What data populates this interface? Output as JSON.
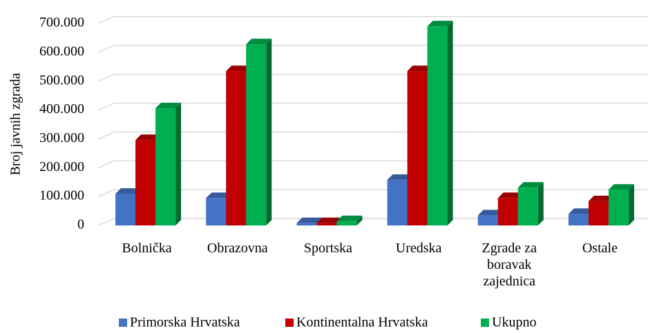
{
  "chart_data": {
    "type": "bar3d",
    "y_label": "Broj javnih zgrada",
    "categories": [
      "Bolnička",
      "Obrazovna",
      "Sportska",
      "Uredska",
      "Zgrade za boravak zajednica",
      "Ostale"
    ],
    "series": [
      {
        "name": "Primorska Hrvatska",
        "color": "#4472c4",
        "values": [
          110000,
          95000,
          8000,
          158000,
          35000,
          40000
        ]
      },
      {
        "name": "Kontinentalna Hrvatska",
        "color": "#c00000",
        "values": [
          296000,
          535000,
          8000,
          535000,
          95000,
          84000
        ]
      },
      {
        "name": "Ukupno",
        "color": "#00b050",
        "values": [
          406000,
          628000,
          15000,
          690000,
          131000,
          124000
        ]
      }
    ],
    "ylim": [
      0,
      700000
    ],
    "yticks": [
      0,
      {
        "value": 100000,
        "label": "100.000"
      },
      {
        "value": 200000,
        "label": "200.000"
      },
      {
        "value": 300000,
        "label": "300.000"
      },
      {
        "value": 400000,
        "label": "400.000"
      },
      {
        "value": 500000,
        "label": "500.000"
      },
      {
        "value": 600000,
        "label": "600.000"
      },
      {
        "value": 700000,
        "label": "700.000"
      }
    ],
    "grid": true,
    "legend": "bottom"
  }
}
